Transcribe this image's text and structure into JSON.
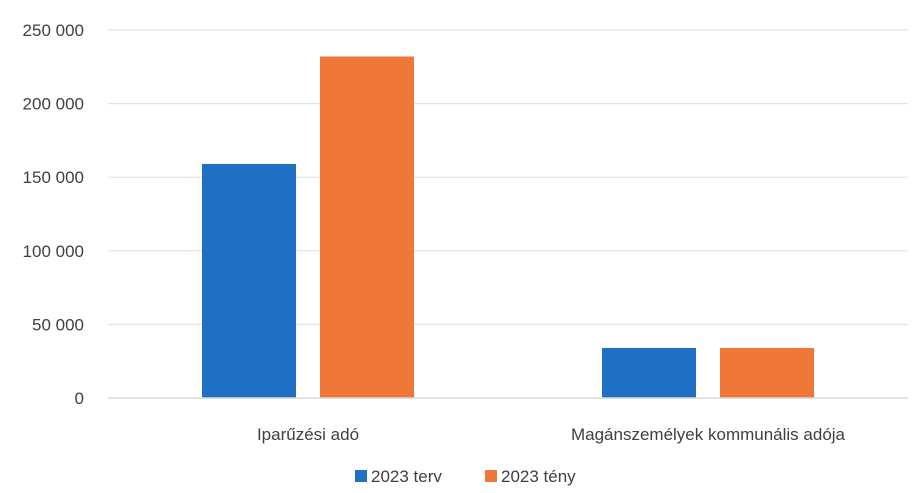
{
  "chart_data": {
    "type": "bar",
    "categories": [
      "Iparűzési adó",
      "Magánszemélyek kommunális adója"
    ],
    "series": [
      {
        "name": "2023 terv",
        "color": "#1f6fc5",
        "values": [
          159000,
          34000
        ]
      },
      {
        "name": "2023 tény",
        "color": "#ef7838",
        "values": [
          232000,
          34000
        ]
      }
    ],
    "ylim": [
      0,
      250000
    ],
    "yticks": [
      0,
      50000,
      100000,
      150000,
      200000,
      250000
    ],
    "ytick_labels": [
      "0",
      "50 000",
      "100 000",
      "150 000",
      "200 000",
      "250 000"
    ],
    "grid": true,
    "legend_position": "bottom"
  }
}
